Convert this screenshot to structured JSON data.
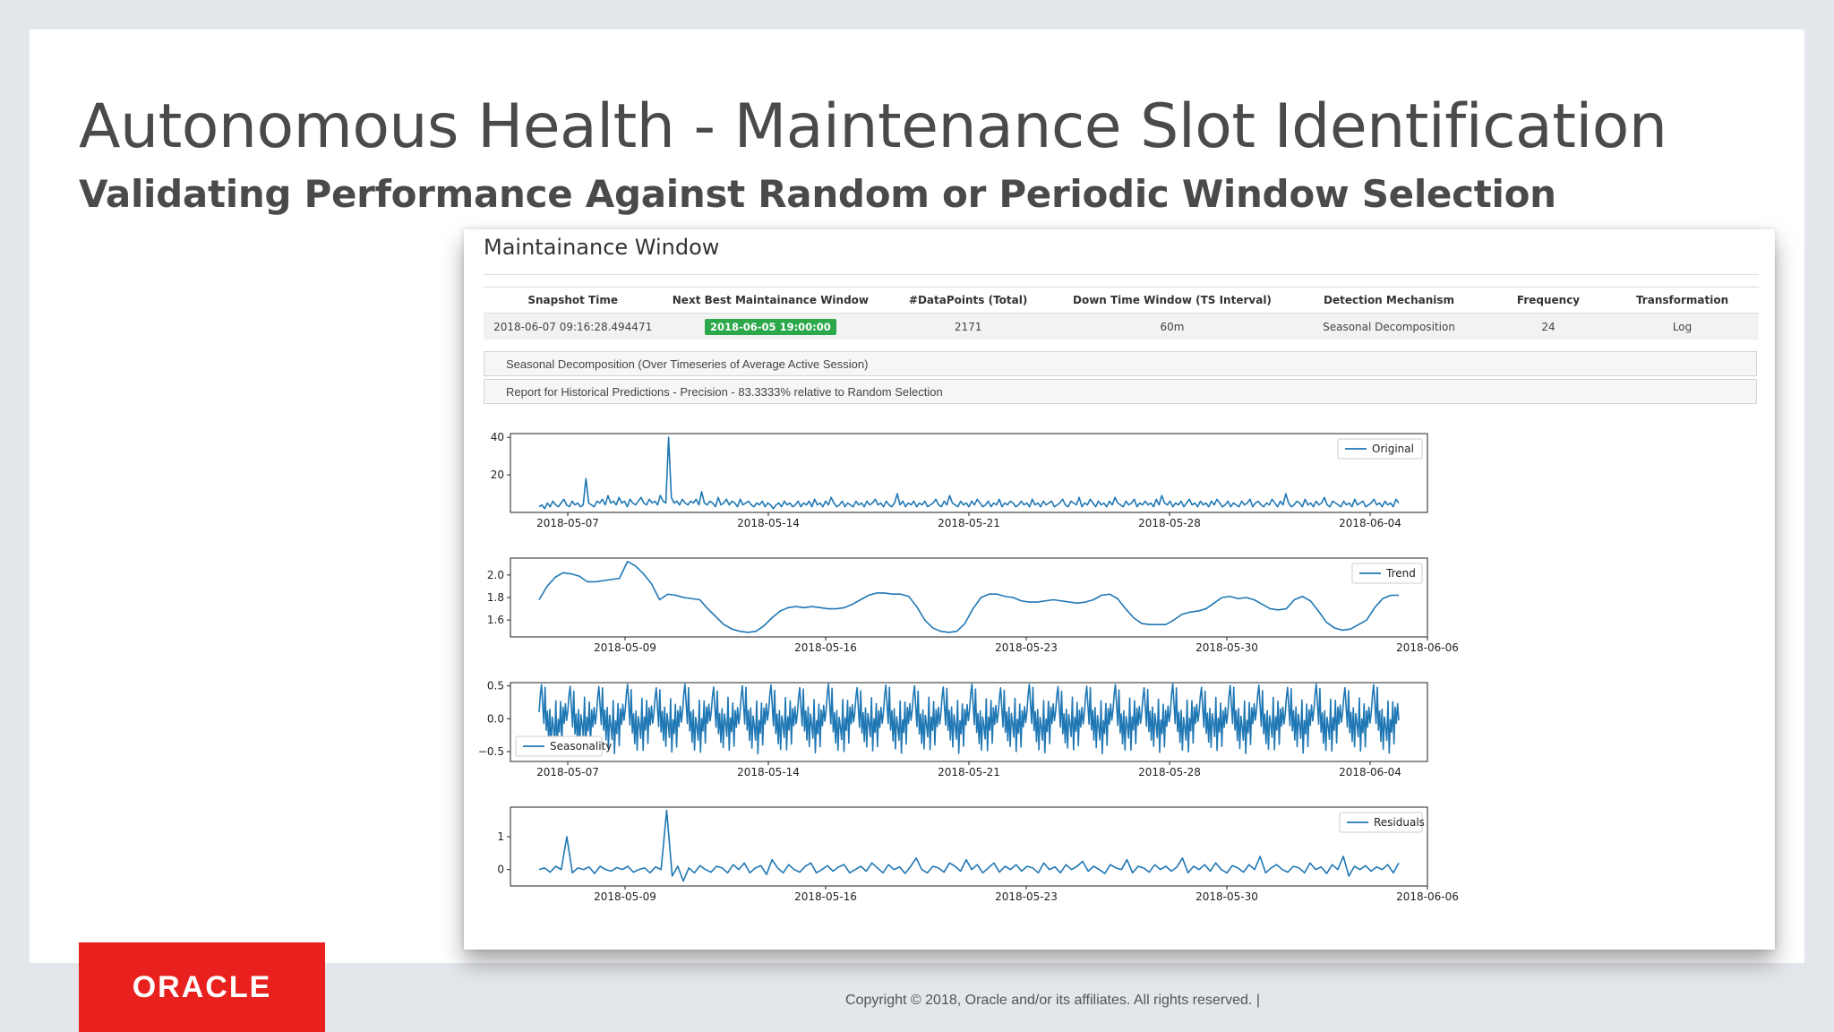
{
  "slide": {
    "title": "Autonomous Health - Maintenance Slot Identification",
    "subtitle": "Validating Performance Against Random or Periodic Window Selection",
    "logo": "ORACLE",
    "copyright": "Copyright © 2018, Oracle and/or its affiliates. All rights reserved.  |"
  },
  "panel": {
    "title": "Maintainance Window",
    "table": {
      "headers": [
        "Snapshot Time",
        "Next Best Maintainance Window",
        "#DataPoints (Total)",
        "Down Time Window (TS Interval)",
        "Detection Mechanism",
        "Frequency",
        "Transformation"
      ],
      "row": {
        "snapshot_time": "2018-06-07 09:16:28.494471",
        "next_window": "2018-06-05 19:00:00",
        "datapoints": "2171",
        "downtime": "60m",
        "mechanism": "Seasonal Decomposition",
        "frequency": "24",
        "transformation": "Log"
      }
    },
    "accordion": [
      "Seasonal Decomposition (Over Timeseries of Average Active Session)",
      "Report for Historical Predictions - Precision - 83.3333% relative to Random Selection"
    ]
  },
  "colors": {
    "series": "#1f77b4",
    "badge": "#2aa84a",
    "logo": "#e8211e"
  },
  "chart_data": [
    {
      "type": "line",
      "legend": "Original",
      "legend_position": "top-right",
      "x_range": [
        "2018-05-05",
        "2018-06-06"
      ],
      "x_ticks": [
        "2018-05-07",
        "2018-05-14",
        "2018-05-21",
        "2018-05-28",
        "2018-06-04"
      ],
      "y_ticks": [
        "20",
        "40"
      ],
      "ylim": [
        0,
        42
      ],
      "series": [
        {
          "name": "Original",
          "x_start": "2018-05-06",
          "x_end": "2018-06-05",
          "points": [
            3,
            4,
            2,
            5,
            3,
            6,
            4,
            3,
            5,
            7,
            4,
            3,
            6,
            4,
            5,
            3,
            4,
            18,
            5,
            4,
            3,
            6,
            5,
            7,
            4,
            9,
            5,
            6,
            4,
            8,
            5,
            6,
            3,
            7,
            5,
            4,
            6,
            8,
            5,
            4,
            7,
            5,
            6,
            4,
            9,
            6,
            5,
            40,
            8,
            5,
            6,
            4,
            7,
            5,
            4,
            6,
            5,
            7,
            4,
            11,
            5,
            4,
            6,
            5,
            3,
            8,
            4,
            5,
            7,
            4,
            6,
            5,
            3,
            7,
            4,
            5,
            6,
            4,
            3,
            5,
            4,
            6,
            3,
            5,
            4,
            2,
            4,
            5,
            3,
            6,
            4,
            5,
            3,
            4,
            6,
            3,
            5,
            4,
            6,
            3,
            7,
            4,
            5,
            3,
            6,
            4,
            8,
            5,
            3,
            4,
            6,
            3,
            5,
            4,
            3,
            6,
            4,
            5,
            3,
            6,
            4,
            5,
            7,
            4,
            5,
            3,
            6,
            4,
            3,
            5,
            10,
            4,
            6,
            3,
            5,
            4,
            6,
            3,
            5,
            4,
            6,
            3,
            4,
            5,
            7,
            4,
            3,
            6,
            4,
            9,
            5,
            4,
            3,
            6,
            4,
            5,
            3,
            6,
            4,
            7,
            5,
            3,
            4,
            6,
            3,
            5,
            4,
            7,
            3,
            5,
            4,
            6,
            5,
            3,
            4,
            6,
            4,
            5,
            3,
            7,
            4,
            5,
            3,
            6,
            4,
            5,
            6,
            3,
            4,
            5,
            7,
            4,
            3,
            6,
            5,
            4,
            8,
            3,
            5,
            4,
            7,
            5,
            3,
            6,
            4,
            5,
            3,
            6,
            4,
            8,
            5,
            4,
            3,
            6,
            4,
            5,
            7,
            3,
            5,
            4,
            6,
            4,
            5,
            3,
            7,
            4,
            9,
            5,
            4,
            6,
            3,
            5,
            4,
            6,
            3,
            5,
            7,
            4,
            5,
            3,
            6,
            4,
            5,
            3,
            6,
            4,
            7,
            5,
            3,
            4,
            6,
            3,
            5,
            4,
            3,
            6,
            4,
            5,
            7,
            3,
            5,
            6,
            4,
            3,
            5,
            4,
            7,
            5,
            3,
            6,
            4,
            10,
            5,
            3,
            4,
            6,
            5,
            3,
            7,
            4,
            5,
            3,
            6,
            4,
            5,
            8,
            4,
            3,
            6,
            5,
            4,
            3,
            6,
            4,
            5,
            3,
            7,
            4,
            5,
            6,
            3,
            4,
            5,
            7,
            4,
            5,
            3,
            6,
            4,
            5,
            3,
            7,
            5
          ]
        }
      ]
    },
    {
      "type": "line",
      "legend": "Trend",
      "legend_position": "top-right",
      "x_range": [
        "2018-05-05",
        "2018-06-06"
      ],
      "x_ticks": [
        "2018-05-09",
        "2018-05-16",
        "2018-05-23",
        "2018-05-30",
        "2018-06-06"
      ],
      "y_ticks": [
        "1.6",
        "1.8",
        "2.0"
      ],
      "ylim": [
        1.45,
        2.15
      ],
      "series": [
        {
          "name": "Trend",
          "x_start": "2018-05-06",
          "x_end": "2018-06-05",
          "points": [
            1.78,
            1.9,
            1.98,
            2.02,
            2.01,
            1.99,
            1.94,
            1.94,
            1.95,
            1.96,
            1.97,
            2.12,
            2.08,
            2.01,
            1.92,
            1.78,
            1.83,
            1.82,
            1.8,
            1.79,
            1.78,
            1.7,
            1.63,
            1.56,
            1.52,
            1.5,
            1.49,
            1.5,
            1.55,
            1.62,
            1.68,
            1.71,
            1.72,
            1.71,
            1.72,
            1.71,
            1.7,
            1.7,
            1.71,
            1.74,
            1.78,
            1.82,
            1.84,
            1.84,
            1.83,
            1.83,
            1.81,
            1.72,
            1.6,
            1.53,
            1.5,
            1.49,
            1.5,
            1.57,
            1.7,
            1.8,
            1.83,
            1.83,
            1.81,
            1.8,
            1.77,
            1.76,
            1.76,
            1.77,
            1.78,
            1.77,
            1.76,
            1.75,
            1.76,
            1.78,
            1.82,
            1.83,
            1.79,
            1.7,
            1.62,
            1.57,
            1.56,
            1.56,
            1.56,
            1.6,
            1.65,
            1.67,
            1.68,
            1.7,
            1.75,
            1.8,
            1.81,
            1.79,
            1.8,
            1.78,
            1.74,
            1.7,
            1.69,
            1.7,
            1.78,
            1.81,
            1.77,
            1.68,
            1.58,
            1.53,
            1.51,
            1.52,
            1.56,
            1.6,
            1.71,
            1.79,
            1.82,
            1.82
          ]
        }
      ]
    },
    {
      "type": "line",
      "legend": "Seasonality",
      "legend_position": "bottom-left",
      "x_range": [
        "2018-05-05",
        "2018-06-06"
      ],
      "x_ticks": [
        "2018-05-07",
        "2018-05-14",
        "2018-05-21",
        "2018-05-28",
        "2018-06-04"
      ],
      "y_ticks": [
        "-0.5",
        "0.0",
        "0.5"
      ],
      "ylim": [
        -0.65,
        0.55
      ],
      "series": [
        {
          "name": "Seasonality",
          "x_start": "2018-05-06",
          "x_end": "2018-06-05",
          "period_points": 24,
          "cycle": [
            0.1,
            0.35,
            0.5,
            0.2,
            -0.1,
            0.45,
            -0.2,
            0.1,
            -0.35,
            0.15,
            -0.45,
            0.05,
            -0.1,
            -0.3,
            0.3,
            -0.5,
            0.0,
            -0.2,
            0.25,
            -0.4,
            0.15,
            -0.1,
            0.2,
            -0.05
          ]
        }
      ]
    },
    {
      "type": "line",
      "legend": "Residuals",
      "legend_position": "top-right",
      "x_range": [
        "2018-05-05",
        "2018-06-06"
      ],
      "x_ticks": [
        "2018-05-09",
        "2018-05-16",
        "2018-05-23",
        "2018-05-30",
        "2018-06-06"
      ],
      "y_ticks": [
        "0",
        "1"
      ],
      "ylim": [
        -0.5,
        1.9
      ],
      "series": [
        {
          "name": "Residuals",
          "x_start": "2018-05-06",
          "x_end": "2018-06-05",
          "points": [
            0,
            0.05,
            -0.08,
            0.1,
            0,
            1.0,
            -0.1,
            0.05,
            0,
            0.08,
            -0.12,
            0.1,
            0,
            -0.05,
            0.06,
            0,
            0.1,
            -0.08,
            0,
            0.05,
            -0.1,
            0.08,
            0,
            1.8,
            -0.2,
            0.1,
            -0.35,
            0.05,
            -0.1,
            0.12,
            0,
            -0.08,
            0.1,
            0.05,
            -0.1,
            0.15,
            0,
            0.2,
            -0.1,
            0.05,
            0.12,
            -0.15,
            0.3,
            0.05,
            -0.1,
            0.15,
            0,
            -0.08,
            0.1,
            0.2,
            -0.1,
            0,
            0.12,
            -0.05,
            0.08,
            0.15,
            -0.1,
            0,
            0.1,
            -0.05,
            0.2,
            0.05,
            -0.1,
            0.15,
            0,
            0.08,
            -0.12,
            0.1,
            0.35,
            0,
            -0.1,
            0.1,
            0.05,
            -0.08,
            0.2,
            0.1,
            -0.05,
            0.3,
            0,
            0.15,
            -0.1,
            0.05,
            0.2,
            -0.08,
            0.1,
            0,
            0.15,
            -0.05,
            0.1,
            0.05,
            -0.1,
            0.2,
            0,
            0.08,
            -0.1,
            0.15,
            0,
            0.1,
            0.25,
            -0.05,
            0.1,
            0,
            -0.12,
            0.15,
            0.05,
            0,
            0.3,
            -0.1,
            0.1,
            0.05,
            -0.08,
            0.15,
            0,
            0.1,
            -0.05,
            0.08,
            0.35,
            -0.1,
            0.1,
            0,
            0.15,
            -0.05,
            0.2,
            0,
            -0.1,
            0.12,
            0.05,
            -0.08,
            0.15,
            0,
            0.4,
            -0.1,
            0.05,
            0.15,
            0,
            -0.08,
            0.1,
            0.05,
            -0.1,
            0.2,
            0,
            0.08,
            -0.12,
            0.15,
            0,
            0.4,
            -0.2,
            0.1,
            0,
            0.12,
            -0.05,
            0.08,
            0,
            0.15,
            -0.1,
            0.2
          ]
        }
      ]
    }
  ]
}
